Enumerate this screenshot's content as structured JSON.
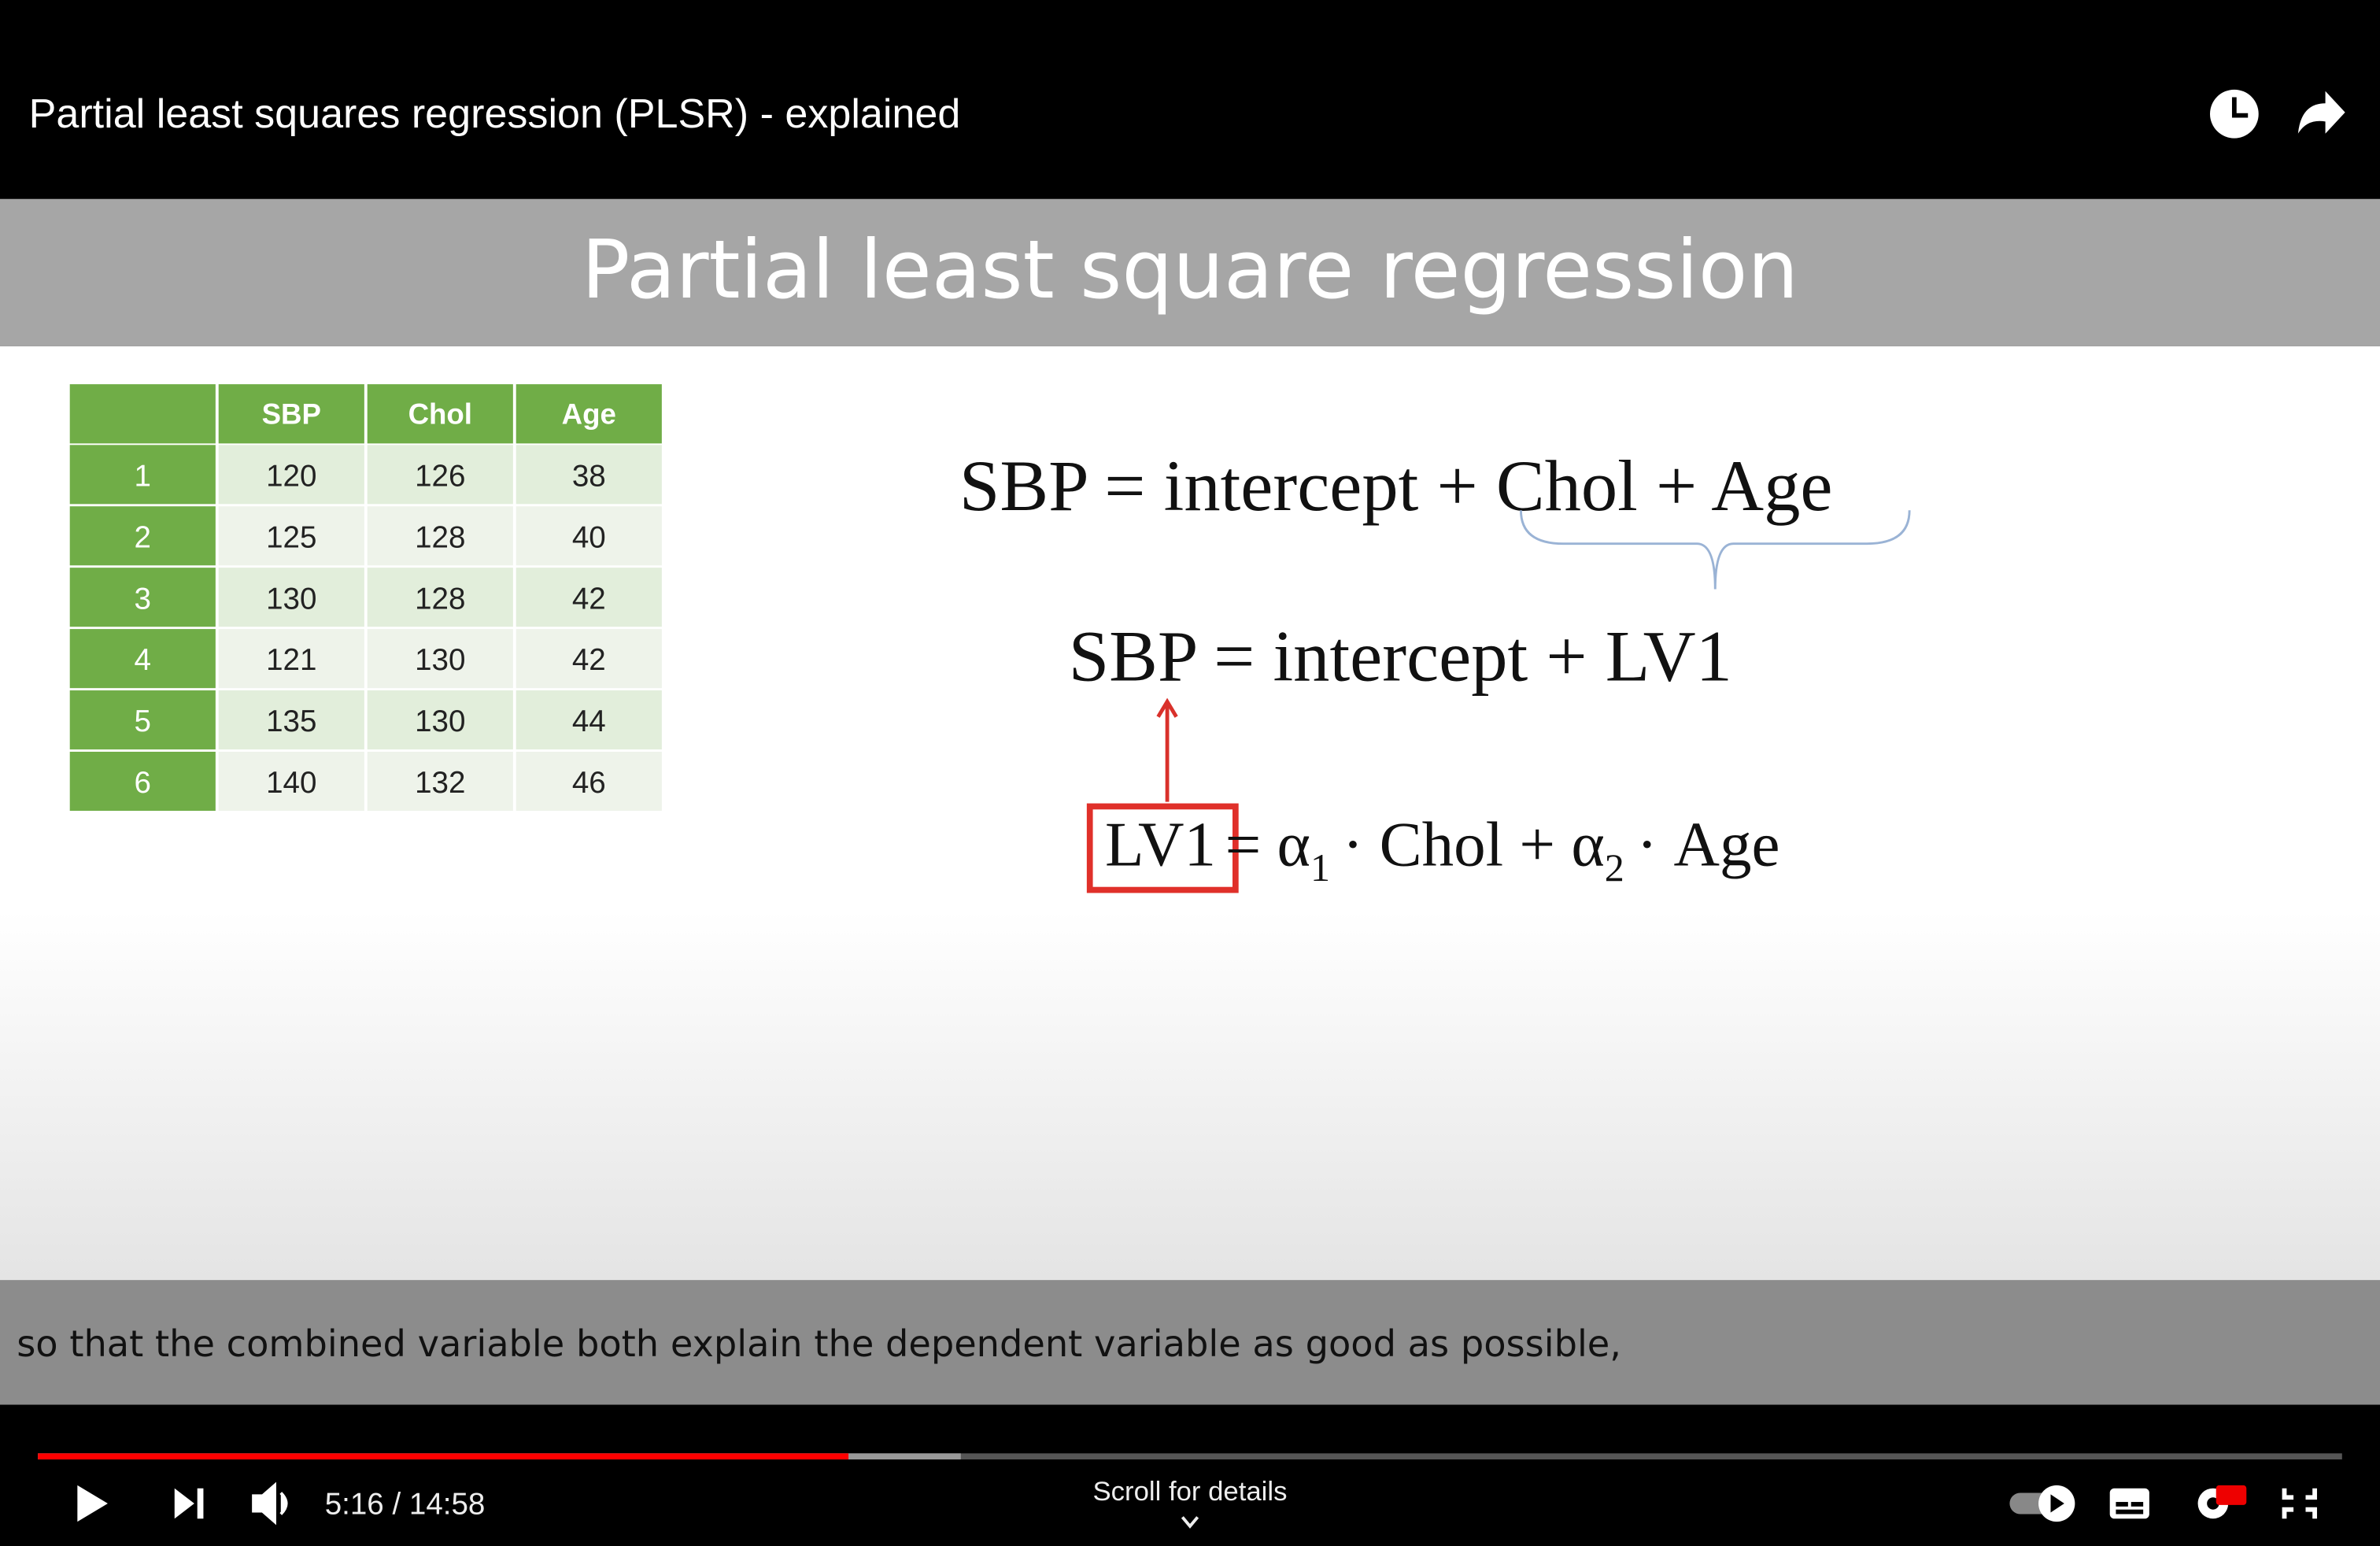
{
  "header": {
    "title": "Partial least squares regression (PLSR) - explained"
  },
  "slide": {
    "title": "Partial least square regression",
    "table": {
      "columns": [
        "SBP",
        "Chol",
        "Age"
      ],
      "rows": [
        {
          "label": 1,
          "cells": [
            120,
            126,
            38
          ]
        },
        {
          "label": 2,
          "cells": [
            125,
            128,
            40
          ]
        },
        {
          "label": 3,
          "cells": [
            130,
            128,
            42
          ]
        },
        {
          "label": 4,
          "cells": [
            121,
            130,
            42
          ]
        },
        {
          "label": 5,
          "cells": [
            135,
            130,
            44
          ]
        },
        {
          "label": 6,
          "cells": [
            140,
            132,
            46
          ]
        }
      ]
    },
    "equations": {
      "eq1": "SBP = intercept + Chol + Age",
      "eq2": "SBP = intercept + LV1",
      "eq3": {
        "boxed": "LV1",
        "part1": "= α",
        "sub1": "1",
        "part2": "· Chol + α",
        "sub2": "2",
        "part3": "· Age"
      }
    }
  },
  "caption": "so that the combined variable both explain the dependent variable as good as possible,",
  "player": {
    "time": "5:16 / 14:58",
    "scroll_hint": "Scroll for details"
  }
}
